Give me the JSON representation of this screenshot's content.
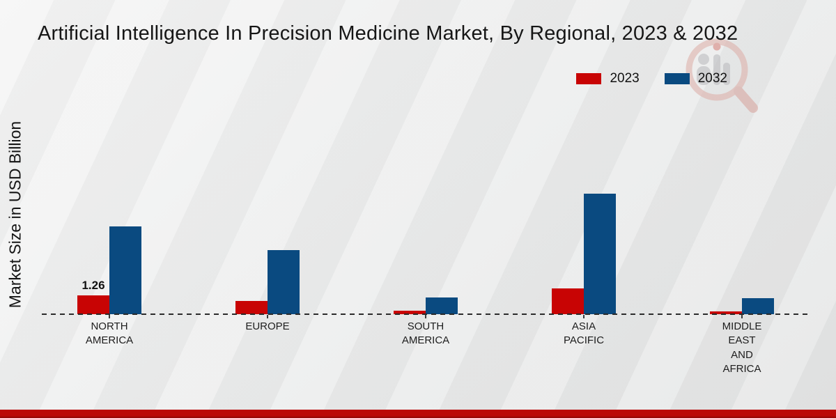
{
  "page": {
    "title": "Artificial Intelligence In Precision Medicine Market, By Regional, 2023 & 2032",
    "y_axis_label": "Market Size in USD Billion",
    "watermark_icon": "magnifier-research-logo",
    "footer_band_color": "#bb0707",
    "background_color": "#ececec"
  },
  "legend": {
    "position": "top-right",
    "items": [
      {
        "label": "2023",
        "color": "#c80404"
      },
      {
        "label": "2032",
        "color": "#0a4a80"
      }
    ]
  },
  "chart_data": {
    "type": "bar",
    "title": "Artificial Intelligence In Precision Medicine Market, By Regional, 2023 & 2032",
    "xlabel": "",
    "ylabel": "Market Size in USD Billion",
    "categories": [
      "North America",
      "Europe",
      "South America",
      "Asia Pacific",
      "Middle East and Africa"
    ],
    "tick_labels": [
      "NORTH\nAMERICA",
      "EUROPE",
      "SOUTH\nAMERICA",
      "ASIA\nPACIFIC",
      "MIDDLE\nEAST\nAND\nAFRICA"
    ],
    "series": [
      {
        "name": "2023",
        "color": "#c80404",
        "values": [
          1.26,
          0.89,
          0.23,
          1.73,
          0.19
        ],
        "data_labels": [
          "1.26",
          "",
          "",
          "",
          ""
        ]
      },
      {
        "name": "2032",
        "color": "#0a4a80",
        "values": [
          5.88,
          4.29,
          1.12,
          8.07,
          1.07
        ],
        "data_labels": [
          "",
          "",
          "",
          "",
          ""
        ]
      }
    ],
    "ylim": [
      0,
      8.5
    ],
    "grid": false,
    "baseline_style": "dashed",
    "legend_position": "top-right",
    "units": "USD Billion"
  }
}
